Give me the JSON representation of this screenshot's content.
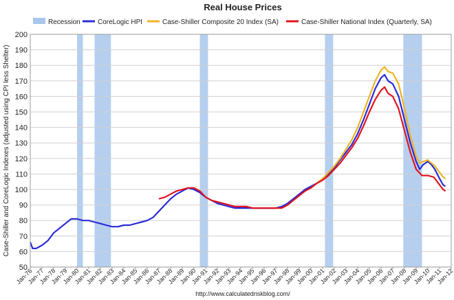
{
  "chart_data": {
    "type": "line",
    "title": "Real House Prices",
    "ylabel": "Case-Shiller and CoreLogic Indexes (adjusted using CPI less Shelter)",
    "xlabel": "",
    "source": "http://www.calculatedriskblog.com/",
    "x_ticks": [
      "Jan-76",
      "Jan-77",
      "Jan-78",
      "Jan-79",
      "Jan-80",
      "Jan-81",
      "Jan-82",
      "Jan-83",
      "Jan-84",
      "Jan-85",
      "Jan-86",
      "Jan-87",
      "Jan-88",
      "Jan-89",
      "Jan-90",
      "Jan-91",
      "Jan-92",
      "Jan-93",
      "Jan-94",
      "Jan-95",
      "Jan-96",
      "Jan-97",
      "Jan-98",
      "Jan-99",
      "Jan-00",
      "Jan-01",
      "Jan-02",
      "Jan-03",
      "Jan-04",
      "Jan-05",
      "Jan-06",
      "Jan-07",
      "Jan-08",
      "Jan-09",
      "Jan-10",
      "Jan-11",
      "Jan-12"
    ],
    "x_range": [
      1976,
      2012
    ],
    "ylim": [
      50,
      200
    ],
    "y_ticks": [
      50,
      60,
      70,
      80,
      90,
      100,
      110,
      120,
      130,
      140,
      150,
      160,
      170,
      180,
      190,
      200
    ],
    "grid": true,
    "legend_position": "top",
    "recessions": [
      [
        1980.0,
        1980.5
      ],
      [
        1981.5,
        1982.9
      ],
      [
        1990.5,
        1991.2
      ],
      [
        2001.2,
        2001.9
      ],
      [
        2007.9,
        2009.5
      ]
    ],
    "legend": [
      {
        "name": "Recession",
        "color": "#a9c7ec",
        "kind": "box"
      },
      {
        "name": "CoreLogic HPI",
        "color": "#2b2bd9",
        "kind": "line"
      },
      {
        "name": "Case-Shiller Composite 20 Index (SA)",
        "color": "#f0b323",
        "kind": "line"
      },
      {
        "name": "Case-Shiller National Index (Quarterly, SA)",
        "color": "#e0141e",
        "kind": "line"
      }
    ],
    "series": [
      {
        "name": "CoreLogic HPI",
        "color": "#2b2bd9",
        "points": [
          [
            1976.0,
            66
          ],
          [
            1976.2,
            62
          ],
          [
            1976.5,
            62
          ],
          [
            1977.0,
            64
          ],
          [
            1977.5,
            67
          ],
          [
            1978.0,
            72
          ],
          [
            1978.5,
            75
          ],
          [
            1979.0,
            78
          ],
          [
            1979.5,
            81
          ],
          [
            1980.0,
            81
          ],
          [
            1980.5,
            80
          ],
          [
            1981.0,
            80
          ],
          [
            1981.5,
            79
          ],
          [
            1982.0,
            78
          ],
          [
            1982.5,
            77
          ],
          [
            1983.0,
            76
          ],
          [
            1983.5,
            76
          ],
          [
            1984.0,
            77
          ],
          [
            1984.5,
            77
          ],
          [
            1985.0,
            78
          ],
          [
            1985.5,
            79
          ],
          [
            1986.0,
            80
          ],
          [
            1986.5,
            82
          ],
          [
            1987.0,
            86
          ],
          [
            1987.5,
            90
          ],
          [
            1988.0,
            94
          ],
          [
            1988.5,
            97
          ],
          [
            1989.0,
            99
          ],
          [
            1989.5,
            101
          ],
          [
            1990.0,
            100
          ],
          [
            1990.5,
            98
          ],
          [
            1991.0,
            95
          ],
          [
            1991.5,
            93
          ],
          [
            1992.0,
            91
          ],
          [
            1992.5,
            90
          ],
          [
            1993.0,
            89
          ],
          [
            1993.5,
            88
          ],
          [
            1994.0,
            88
          ],
          [
            1994.5,
            88
          ],
          [
            1995.0,
            88
          ],
          [
            1995.5,
            88
          ],
          [
            1996.0,
            88
          ],
          [
            1996.5,
            88
          ],
          [
            1997.0,
            88
          ],
          [
            1997.5,
            89
          ],
          [
            1998.0,
            91
          ],
          [
            1998.5,
            94
          ],
          [
            1999.0,
            97
          ],
          [
            1999.5,
            100
          ],
          [
            2000.0,
            102
          ],
          [
            2000.5,
            104
          ],
          [
            2001.0,
            107
          ],
          [
            2001.5,
            110
          ],
          [
            2002.0,
            114
          ],
          [
            2002.5,
            119
          ],
          [
            2003.0,
            124
          ],
          [
            2003.5,
            129
          ],
          [
            2004.0,
            136
          ],
          [
            2004.5,
            145
          ],
          [
            2005.0,
            155
          ],
          [
            2005.5,
            165
          ],
          [
            2006.0,
            172
          ],
          [
            2006.3,
            174
          ],
          [
            2006.6,
            170
          ],
          [
            2007.0,
            168
          ],
          [
            2007.5,
            160
          ],
          [
            2008.0,
            145
          ],
          [
            2008.5,
            130
          ],
          [
            2009.0,
            118
          ],
          [
            2009.3,
            113
          ],
          [
            2009.6,
            116
          ],
          [
            2010.0,
            118
          ],
          [
            2010.3,
            116
          ],
          [
            2010.6,
            113
          ],
          [
            2011.0,
            107
          ],
          [
            2011.3,
            103
          ],
          [
            2011.5,
            102
          ]
        ]
      },
      {
        "name": "Case-Shiller Composite 20 Index (SA)",
        "color": "#f0b323",
        "points": [
          [
            2000.0,
            101
          ],
          [
            2000.5,
            104
          ],
          [
            2001.0,
            107
          ],
          [
            2001.5,
            111
          ],
          [
            2002.0,
            115
          ],
          [
            2002.5,
            120
          ],
          [
            2003.0,
            126
          ],
          [
            2003.5,
            132
          ],
          [
            2004.0,
            140
          ],
          [
            2004.5,
            150
          ],
          [
            2005.0,
            160
          ],
          [
            2005.5,
            170
          ],
          [
            2006.0,
            177
          ],
          [
            2006.3,
            179
          ],
          [
            2006.6,
            176
          ],
          [
            2007.0,
            175
          ],
          [
            2007.5,
            168
          ],
          [
            2008.0,
            152
          ],
          [
            2008.5,
            135
          ],
          [
            2009.0,
            121
          ],
          [
            2009.3,
            117
          ],
          [
            2009.6,
            118
          ],
          [
            2010.0,
            119
          ],
          [
            2010.3,
            117
          ],
          [
            2010.6,
            115
          ],
          [
            2011.0,
            111
          ],
          [
            2011.3,
            108
          ],
          [
            2011.5,
            107
          ]
        ]
      },
      {
        "name": "Case-Shiller National Index (Quarterly, SA)",
        "color": "#e0141e",
        "points": [
          [
            1987.0,
            94
          ],
          [
            1987.5,
            95
          ],
          [
            1988.0,
            97
          ],
          [
            1988.5,
            99
          ],
          [
            1989.0,
            100
          ],
          [
            1989.5,
            101
          ],
          [
            1990.0,
            101
          ],
          [
            1990.5,
            99
          ],
          [
            1991.0,
            95
          ],
          [
            1991.5,
            93
          ],
          [
            1992.0,
            92
          ],
          [
            1992.5,
            91
          ],
          [
            1993.0,
            90
          ],
          [
            1993.5,
            89
          ],
          [
            1994.0,
            89
          ],
          [
            1994.5,
            89
          ],
          [
            1995.0,
            88
          ],
          [
            1995.5,
            88
          ],
          [
            1996.0,
            88
          ],
          [
            1996.5,
            88
          ],
          [
            1997.0,
            88
          ],
          [
            1997.5,
            88
          ],
          [
            1998.0,
            90
          ],
          [
            1998.5,
            93
          ],
          [
            1999.0,
            96
          ],
          [
            1999.5,
            99
          ],
          [
            2000.0,
            101
          ],
          [
            2000.5,
            104
          ],
          [
            2001.0,
            106
          ],
          [
            2001.5,
            109
          ],
          [
            2002.0,
            113
          ],
          [
            2002.5,
            117
          ],
          [
            2003.0,
            122
          ],
          [
            2003.5,
            127
          ],
          [
            2004.0,
            133
          ],
          [
            2004.5,
            141
          ],
          [
            2005.0,
            150
          ],
          [
            2005.5,
            158
          ],
          [
            2006.0,
            164
          ],
          [
            2006.3,
            166
          ],
          [
            2006.6,
            162
          ],
          [
            2007.0,
            160
          ],
          [
            2007.5,
            152
          ],
          [
            2008.0,
            138
          ],
          [
            2008.5,
            124
          ],
          [
            2009.0,
            113
          ],
          [
            2009.5,
            109
          ],
          [
            2010.0,
            109
          ],
          [
            2010.5,
            108
          ],
          [
            2011.0,
            103
          ],
          [
            2011.3,
            100
          ],
          [
            2011.5,
            99
          ]
        ]
      }
    ]
  }
}
